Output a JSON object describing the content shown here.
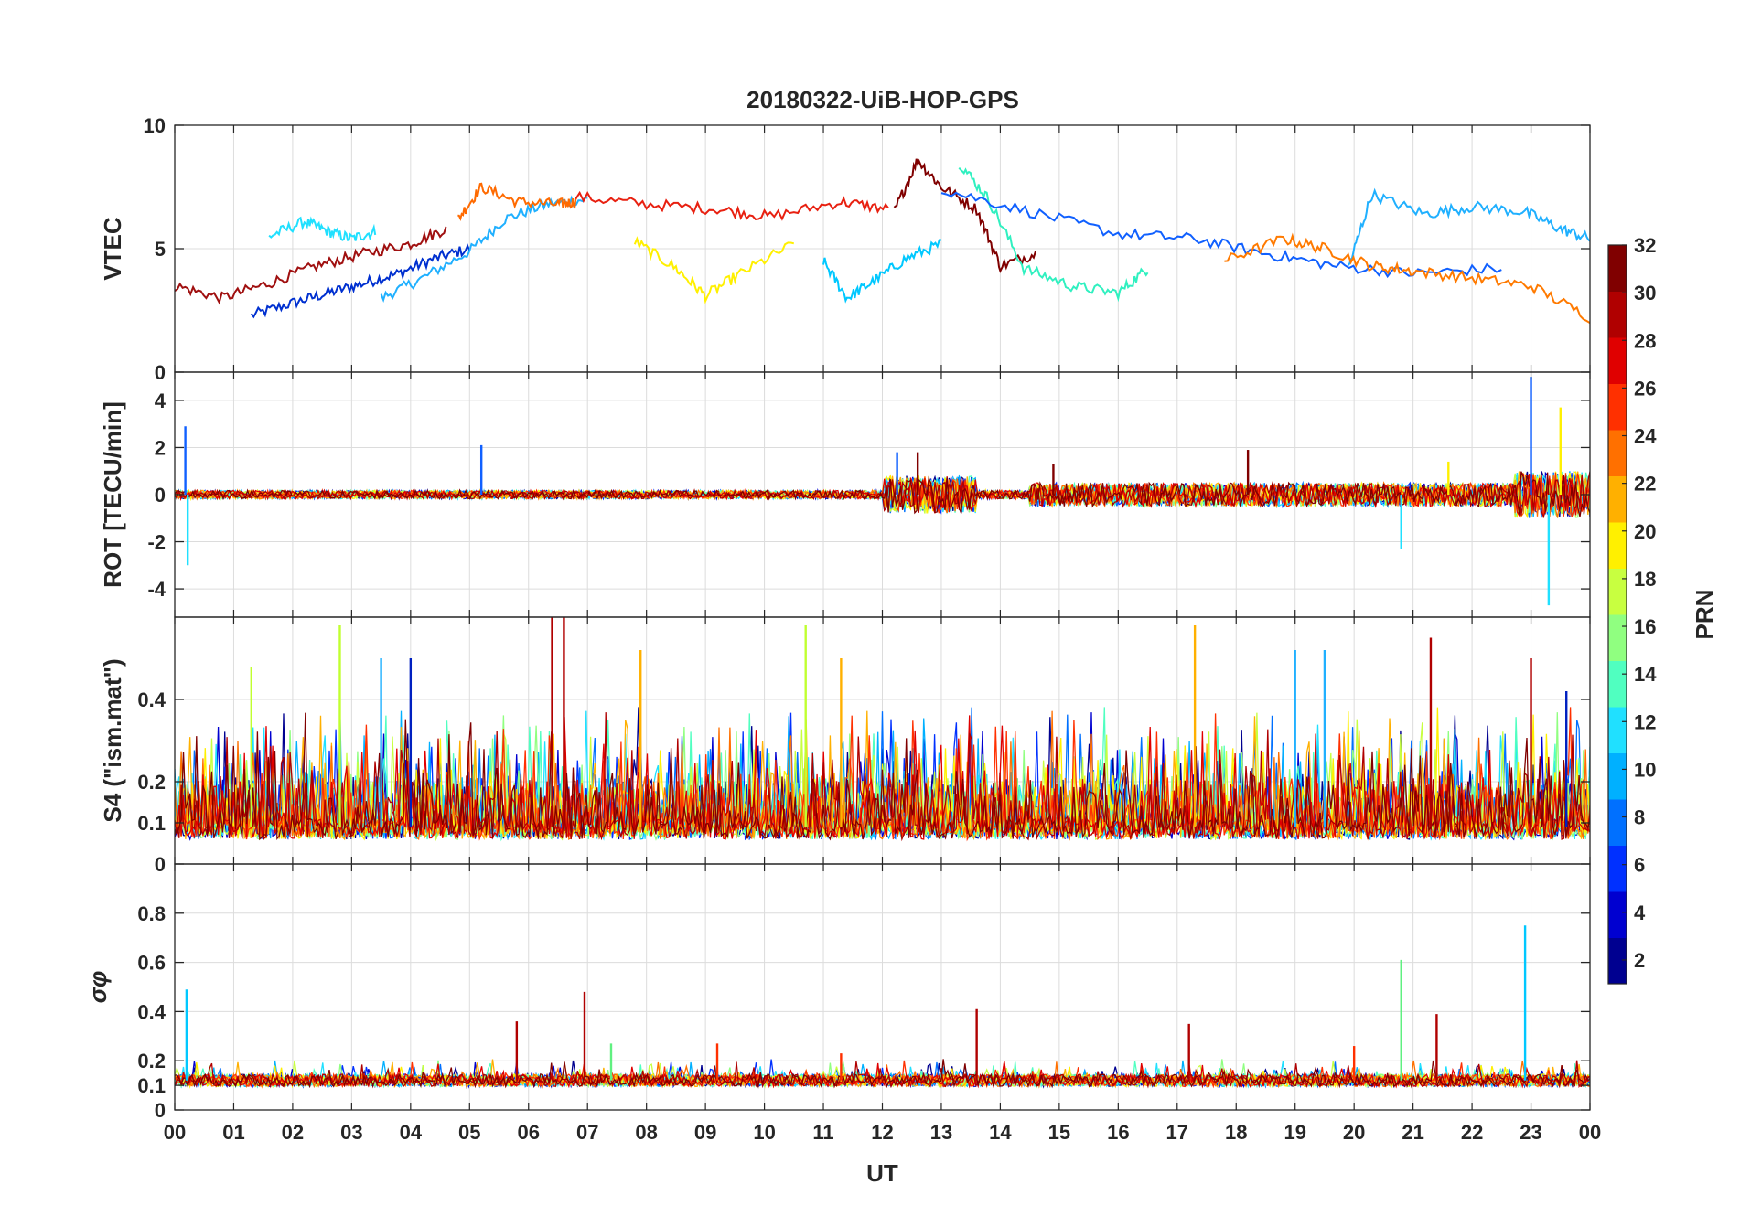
{
  "chart_data": [
    {
      "type": "line",
      "panel": "vtec",
      "title": "20180322-UiB-HOP-GPS",
      "ylabel": "VTEC",
      "ylim": [
        0,
        10
      ],
      "yticks": [
        0,
        5,
        10
      ],
      "xlim": [
        0,
        24
      ],
      "baseline": 4.8,
      "series_note": "one line per GPS PRN (1-32), colored by PRN",
      "series": [
        {
          "name": "PRN 4",
          "color": "#0030d0",
          "x": [
            1.3,
            2.0,
            2.6,
            3.2,
            3.8,
            4.4,
            5.0
          ],
          "y": [
            2.3,
            2.8,
            3.2,
            3.6,
            4.0,
            4.6,
            5.0
          ]
        },
        {
          "name": "PRN 10",
          "color": "#20b0ff",
          "x": [
            3.5,
            4.2,
            5.0,
            5.6,
            6.3,
            7.0
          ],
          "y": [
            3.0,
            3.8,
            4.9,
            6.2,
            6.8,
            7.0
          ]
        },
        {
          "name": "PRN 13",
          "color": "#20e0ff",
          "x": [
            1.6,
            2.2,
            2.6,
            3.0,
            3.4
          ],
          "y": [
            5.5,
            6.1,
            5.7,
            5.4,
            5.7
          ]
        },
        {
          "name": "PRN 31",
          "color": "#a01010",
          "x": [
            0.0,
            0.8,
            1.6,
            2.4,
            3.2,
            4.0,
            4.6
          ],
          "y": [
            3.5,
            3.0,
            3.6,
            4.3,
            4.8,
            5.2,
            5.8
          ]
        },
        {
          "name": "PRN 26",
          "color": "#ff6a00",
          "x": [
            4.8,
            5.2,
            5.8,
            6.5,
            6.8
          ],
          "y": [
            6.2,
            7.5,
            6.9,
            6.8,
            6.9
          ]
        },
        {
          "name": "PRN 29",
          "color": "#e82010",
          "x": [
            6.8,
            8.0,
            9.2,
            10.1,
            11.3,
            12.1
          ],
          "y": [
            7.1,
            6.8,
            6.6,
            6.3,
            6.9,
            6.6
          ]
        },
        {
          "name": "PRN 20",
          "color": "#fff000",
          "x": [
            7.8,
            8.5,
            9.0,
            9.6,
            10.5
          ],
          "y": [
            5.3,
            4.2,
            3.1,
            4.0,
            5.2
          ]
        },
        {
          "name": "PRN 12",
          "color": "#00c8ff",
          "x": [
            11.0,
            11.4,
            11.8,
            12.4,
            13.0
          ],
          "y": [
            4.5,
            3.0,
            3.6,
            4.6,
            5.2
          ]
        },
        {
          "name": "PRN 32",
          "color": "#800000",
          "x": [
            12.2,
            12.6,
            13.0,
            13.6,
            14.0,
            14.6
          ],
          "y": [
            6.5,
            8.6,
            7.5,
            6.6,
            4.3,
            4.8
          ]
        },
        {
          "name": "PRN 14",
          "color": "#30f0c0",
          "x": [
            13.3,
            13.8,
            14.4,
            15.2,
            16.0,
            16.5
          ],
          "y": [
            8.5,
            7.0,
            4.2,
            3.5,
            3.2,
            4.2
          ]
        },
        {
          "name": "PRN 7",
          "color": "#1060ff",
          "x": [
            13.0,
            14.5,
            16.0,
            17.3,
            18.5,
            19.7,
            21.0,
            22.5
          ],
          "y": [
            7.4,
            6.5,
            5.6,
            5.4,
            4.8,
            4.3,
            4.0,
            4.2
          ]
        },
        {
          "name": "PRN 11",
          "color": "#20b0ff",
          "x": [
            19.9,
            20.3,
            21.2,
            22.0,
            22.9,
            23.5,
            24.0
          ],
          "y": [
            4.2,
            7.2,
            6.4,
            6.7,
            6.5,
            5.8,
            5.4
          ]
        },
        {
          "name": "PRN 25",
          "color": "#ff7a00",
          "x": [
            17.8,
            18.8,
            19.5,
            20.3,
            21.0,
            22.0,
            23.0,
            24.0
          ],
          "y": [
            4.5,
            5.4,
            5.0,
            4.3,
            4.1,
            3.8,
            3.5,
            2.2
          ]
        }
      ]
    },
    {
      "type": "line",
      "panel": "rot",
      "ylabel": "ROT [TECU/min]",
      "ylim": [
        -5.2,
        5.2
      ],
      "yticks": [
        -4,
        -2,
        0,
        2,
        4
      ],
      "xlim": [
        0,
        24
      ],
      "spikes": [
        {
          "name": "PRN 7",
          "color": "#1060ff",
          "x": [
            0.18,
            5.2,
            12.25,
            23.0
          ],
          "y": [
            2.9,
            2.1,
            1.8,
            5.0
          ]
        },
        {
          "name": "PRN 13",
          "color": "#20e0ff",
          "x": [
            0.22,
            20.8,
            23.3
          ],
          "y": [
            -3.0,
            -2.3,
            -4.7
          ]
        },
        {
          "name": "PRN 32",
          "color": "#800000",
          "x": [
            12.6,
            14.9,
            18.2
          ],
          "y": [
            1.8,
            1.3,
            1.9
          ]
        },
        {
          "name": "PRN 20",
          "color": "#fff000",
          "x": [
            21.6,
            23.5
          ],
          "y": [
            1.4,
            3.7
          ]
        }
      ]
    },
    {
      "type": "line",
      "panel": "s4",
      "ylabel": "S4 (\"ism.mat\")",
      "ylim": [
        0,
        0.6
      ],
      "yticks": [
        0,
        0.1,
        0.2,
        0.4
      ],
      "xlim": [
        0,
        24
      ],
      "baseline": 0.09,
      "peaks": [
        {
          "name": "PRN 30",
          "color": "#b00000",
          "x": [
            6.4,
            6.6,
            21.3,
            23.0
          ],
          "y": [
            0.6,
            0.6,
            0.55,
            0.5
          ]
        },
        {
          "name": "PRN 18",
          "color": "#c0ff30",
          "x": [
            1.3,
            2.8,
            10.7
          ],
          "y": [
            0.48,
            0.58,
            0.58
          ]
        },
        {
          "name": "PRN 22",
          "color": "#ffb000",
          "x": [
            7.9,
            11.3,
            17.3
          ],
          "y": [
            0.52,
            0.5,
            0.58
          ]
        },
        {
          "name": "PRN 10",
          "color": "#20b0ff",
          "x": [
            19.0,
            19.5,
            3.5
          ],
          "y": [
            0.52,
            0.52,
            0.5
          ]
        },
        {
          "name": "PRN 5",
          "color": "#0020c0",
          "x": [
            4.0,
            23.6
          ],
          "y": [
            0.5,
            0.42
          ]
        }
      ]
    },
    {
      "type": "line",
      "panel": "sigma_phi",
      "ylabel": "σφ",
      "ylim": [
        0,
        1.0
      ],
      "yticks": [
        0,
        0.1,
        0.2,
        0.4,
        0.6,
        0.8
      ],
      "xlim": [
        0,
        24
      ],
      "xlabel": "UT",
      "xtick_labels": [
        "00",
        "01",
        "02",
        "03",
        "04",
        "05",
        "06",
        "07",
        "08",
        "09",
        "10",
        "11",
        "12",
        "13",
        "14",
        "15",
        "16",
        "17",
        "18",
        "19",
        "20",
        "21",
        "22",
        "23",
        "00"
      ],
      "baseline": 0.12,
      "peaks": [
        {
          "name": "PRN 12",
          "color": "#00c8ff",
          "x": [
            0.2,
            22.9
          ],
          "y": [
            0.49,
            0.75
          ]
        },
        {
          "name": "PRN 30",
          "color": "#b00000",
          "x": [
            5.8,
            6.95,
            13.6,
            17.2,
            21.4
          ],
          "y": [
            0.36,
            0.48,
            0.41,
            0.35,
            0.39
          ]
        },
        {
          "name": "PRN 16",
          "color": "#60f080",
          "x": [
            20.8,
            7.4
          ],
          "y": [
            0.61,
            0.27
          ]
        },
        {
          "name": "PRN 26",
          "color": "#ff3000",
          "x": [
            9.2,
            11.3,
            20.0
          ],
          "y": [
            0.27,
            0.23,
            0.26
          ]
        }
      ]
    }
  ],
  "colorbar": {
    "label": "PRN",
    "min": 1,
    "max": 32,
    "ticks": [
      2,
      4,
      6,
      8,
      10,
      12,
      14,
      16,
      18,
      20,
      22,
      24,
      26,
      28,
      30,
      32
    ]
  }
}
